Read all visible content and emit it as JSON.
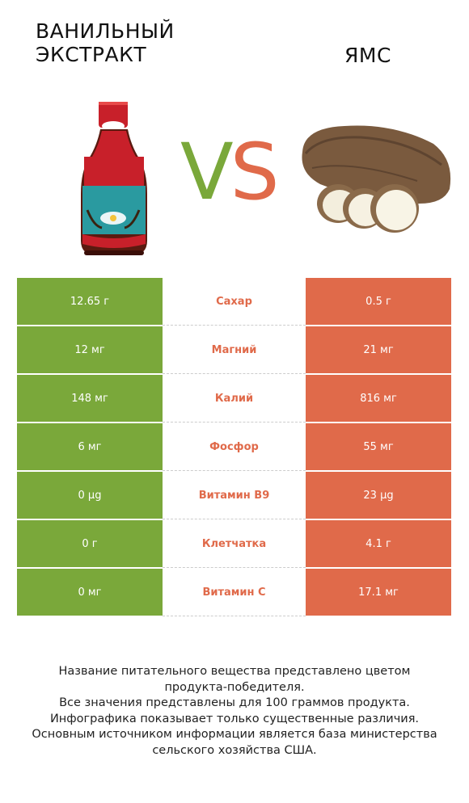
{
  "left_product": {
    "title_lines": [
      "ВАНИЛЬНЫЙ",
      "ЭКСТРАКТ"
    ],
    "color": "#7aa83a",
    "image_icon": "vanilla-extract-bottle"
  },
  "right_product": {
    "title": "ЯМС",
    "color": "#e06a4a",
    "image_icon": "yam-root"
  },
  "vs": {
    "v": "V",
    "s": "S"
  },
  "rows": [
    {
      "nutrient": "Сахар",
      "left": "12.65 г",
      "right": "0.5 г"
    },
    {
      "nutrient": "Магний",
      "left": "12 мг",
      "right": "21 мг"
    },
    {
      "nutrient": "Калий",
      "left": "148 мг",
      "right": "816 мг"
    },
    {
      "nutrient": "Фосфор",
      "left": "6 мг",
      "right": "55 мг"
    },
    {
      "nutrient": "Витамин B9",
      "left": "0 µg",
      "right": "23 µg"
    },
    {
      "nutrient": "Клетчатка",
      "left": "0 г",
      "right": "4.1 г"
    },
    {
      "nutrient": "Витамин C",
      "left": "0 мг",
      "right": "17.1 мг"
    }
  ],
  "footer_lines": [
    "Название питательного вещества представлено цветом",
    "продукта-победителя.",
    "Все значения представлены для 100 граммов продукта.",
    "Инфографика показывает только существенные различия.",
    "Основным источником информации является база министерства",
    "сельского хозяйства США."
  ]
}
